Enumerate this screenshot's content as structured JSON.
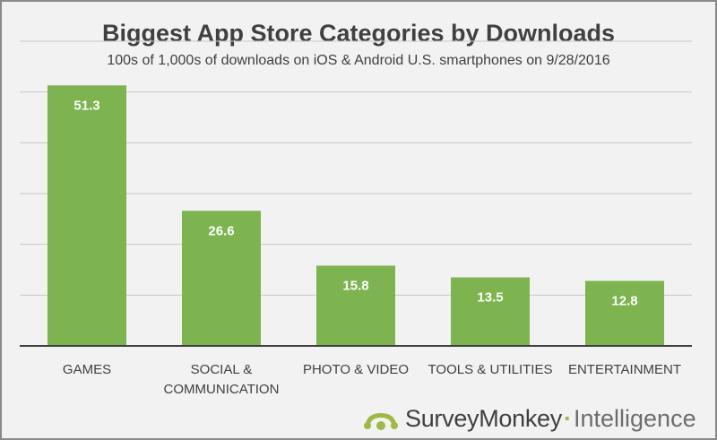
{
  "chart_data": {
    "type": "bar",
    "title": "Biggest App Store Categories by Downloads",
    "subtitle": "100s of 1,000s of downloads on iOS & Android U.S. smartphones on 9/28/2016",
    "categories": [
      "GAMES",
      "SOCIAL & COMMUNICATION",
      "PHOTO & VIDEO",
      "TOOLS & UTILITIES",
      "ENTERTAINMENT"
    ],
    "category_lines": [
      [
        "GAMES"
      ],
      [
        "SOCIAL &",
        "COMMUNICATION"
      ],
      [
        "PHOTO & VIDEO"
      ],
      [
        "TOOLS & UTILITIES"
      ],
      [
        "ENTERTAINMENT"
      ]
    ],
    "values": [
      51.3,
      26.6,
      15.8,
      13.5,
      12.8
    ],
    "value_labels": [
      "51.3",
      "26.6",
      "15.8",
      "13.5",
      "12.8"
    ],
    "ylim": [
      0,
      60
    ],
    "grid": true,
    "ytick_step": 10,
    "show_data_labels": true,
    "bar_color": "#7db44f",
    "grid_color": "#c8c8c8",
    "axis_color": "#404040"
  },
  "branding": {
    "word1": "SurveyMonkey",
    "separator": "·",
    "word2": "Intelligence",
    "accent_color": "#9fba42",
    "logo_icon": "surveymonkey-logo-icon"
  }
}
